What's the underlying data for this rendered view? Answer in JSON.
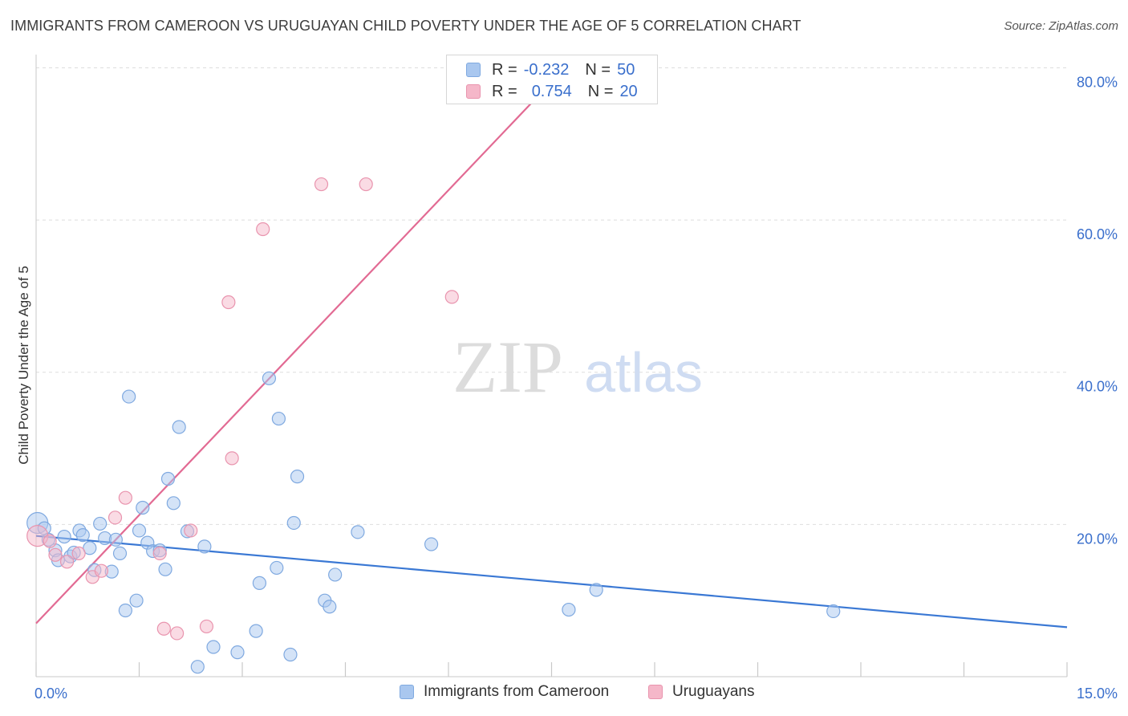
{
  "header": {
    "title": "IMMIGRANTS FROM CAMEROON VS URUGUAYAN CHILD POVERTY UNDER THE AGE OF 5 CORRELATION CHART",
    "source": "Source: ZipAtlas.com"
  },
  "watermark": {
    "zip": "ZIP",
    "atlas": "atlas"
  },
  "stats": [
    {
      "r_label": "R =",
      "r_value": "-0.232",
      "n_label": "N =",
      "n_value": "50",
      "color": "#a9c7ef"
    },
    {
      "r_label": "R =",
      "r_value": "0.754",
      "n_label": "N =",
      "n_value": "20",
      "color": "#f5b7c9"
    }
  ],
  "legend": [
    {
      "label": "Immigrants from Cameroon",
      "color": "#a9c7ef"
    },
    {
      "label": "Uruguayans",
      "color": "#f5b7c9"
    }
  ],
  "chart_data": {
    "type": "scatter",
    "title": "IMMIGRANTS FROM CAMEROON VS URUGUAYAN CHILD POVERTY UNDER THE AGE OF 5 CORRELATION CHART",
    "xlabel": "",
    "ylabel": "Child Poverty Under the Age of 5",
    "xlim": [
      0,
      15
    ],
    "ylim": [
      0,
      81
    ],
    "x_ticks": [
      0,
      1.5,
      3,
      4.5,
      6,
      7.5,
      9,
      10.5,
      12,
      13.5,
      15
    ],
    "x_tick_labels": [
      {
        "value": 0,
        "label": "0.0%"
      },
      {
        "value": 15,
        "label": "15.0%"
      }
    ],
    "y_tick_labels": [
      {
        "value": 20,
        "label": "20.0%"
      },
      {
        "value": 40,
        "label": "40.0%"
      },
      {
        "value": 60,
        "label": "60.0%"
      },
      {
        "value": 80,
        "label": "80.0%"
      }
    ],
    "y_gridlines": [
      20,
      40,
      60,
      80
    ],
    "grid": true,
    "legend_position": "bottom",
    "series": [
      {
        "name": "Immigrants from Cameroon",
        "color": "#a9c7ef",
        "stroke": "#7fa9e0",
        "trend_color": "#3a78d4",
        "trend": {
          "x0": 0,
          "y0": 18.5,
          "x1": 15,
          "y1": 6.5
        },
        "points": [
          {
            "x": 0.02,
            "y": 20.2,
            "big": true
          },
          {
            "x": 0.12,
            "y": 19.5
          },
          {
            "x": 0.18,
            "y": 18.0
          },
          {
            "x": 0.28,
            "y": 16.6
          },
          {
            "x": 0.32,
            "y": 15.3
          },
          {
            "x": 0.41,
            "y": 18.4
          },
          {
            "x": 0.5,
            "y": 15.8
          },
          {
            "x": 0.55,
            "y": 16.3
          },
          {
            "x": 0.63,
            "y": 19.2
          },
          {
            "x": 0.68,
            "y": 18.6
          },
          {
            "x": 0.78,
            "y": 16.9
          },
          {
            "x": 0.85,
            "y": 14.0
          },
          {
            "x": 0.93,
            "y": 20.1
          },
          {
            "x": 1.0,
            "y": 18.2
          },
          {
            "x": 1.1,
            "y": 13.8
          },
          {
            "x": 1.16,
            "y": 18.0
          },
          {
            "x": 1.22,
            "y": 16.2
          },
          {
            "x": 1.3,
            "y": 8.7
          },
          {
            "x": 1.35,
            "y": 36.8
          },
          {
            "x": 1.46,
            "y": 10.0
          },
          {
            "x": 1.5,
            "y": 19.2
          },
          {
            "x": 1.55,
            "y": 22.2
          },
          {
            "x": 1.62,
            "y": 17.6
          },
          {
            "x": 1.7,
            "y": 16.5
          },
          {
            "x": 1.8,
            "y": 16.6
          },
          {
            "x": 1.88,
            "y": 14.1
          },
          {
            "x": 1.92,
            "y": 26.0
          },
          {
            "x": 2.0,
            "y": 22.8
          },
          {
            "x": 2.08,
            "y": 32.8
          },
          {
            "x": 2.2,
            "y": 19.1
          },
          {
            "x": 2.35,
            "y": 1.3
          },
          {
            "x": 2.45,
            "y": 17.1
          },
          {
            "x": 2.58,
            "y": 3.9
          },
          {
            "x": 2.93,
            "y": 3.2
          },
          {
            "x": 3.2,
            "y": 6.0
          },
          {
            "x": 3.25,
            "y": 12.3
          },
          {
            "x": 3.39,
            "y": 39.2
          },
          {
            "x": 3.5,
            "y": 14.3
          },
          {
            "x": 3.53,
            "y": 33.9
          },
          {
            "x": 3.7,
            "y": 2.9
          },
          {
            "x": 3.75,
            "y": 20.2
          },
          {
            "x": 3.8,
            "y": 26.3
          },
          {
            "x": 4.2,
            "y": 10.0
          },
          {
            "x": 4.27,
            "y": 9.2
          },
          {
            "x": 4.35,
            "y": 13.4
          },
          {
            "x": 4.68,
            "y": 19.0
          },
          {
            "x": 5.75,
            "y": 17.4
          },
          {
            "x": 7.75,
            "y": 8.8
          },
          {
            "x": 8.15,
            "y": 11.4
          },
          {
            "x": 11.6,
            "y": 8.6
          }
        ]
      },
      {
        "name": "Uruguayans",
        "color": "#f5b7c9",
        "stroke": "#e994ae",
        "trend_color": "#e26a93",
        "trend": {
          "x0": 0,
          "y0": 7.0,
          "x1": 7.8,
          "y1": 81
        },
        "points": [
          {
            "x": 0.02,
            "y": 18.5,
            "big": true
          },
          {
            "x": 0.2,
            "y": 17.8
          },
          {
            "x": 0.28,
            "y": 16.0
          },
          {
            "x": 0.45,
            "y": 15.1
          },
          {
            "x": 0.62,
            "y": 16.2
          },
          {
            "x": 0.82,
            "y": 13.1
          },
          {
            "x": 0.95,
            "y": 13.9
          },
          {
            "x": 1.15,
            "y": 20.9
          },
          {
            "x": 1.3,
            "y": 23.5
          },
          {
            "x": 1.8,
            "y": 16.2
          },
          {
            "x": 1.86,
            "y": 6.3
          },
          {
            "x": 2.05,
            "y": 5.7
          },
          {
            "x": 2.25,
            "y": 19.2
          },
          {
            "x": 2.48,
            "y": 6.6
          },
          {
            "x": 2.8,
            "y": 49.2
          },
          {
            "x": 2.85,
            "y": 28.7
          },
          {
            "x": 3.3,
            "y": 58.8
          },
          {
            "x": 4.15,
            "y": 64.7
          },
          {
            "x": 4.8,
            "y": 64.7
          },
          {
            "x": 6.05,
            "y": 49.9
          }
        ]
      }
    ]
  }
}
